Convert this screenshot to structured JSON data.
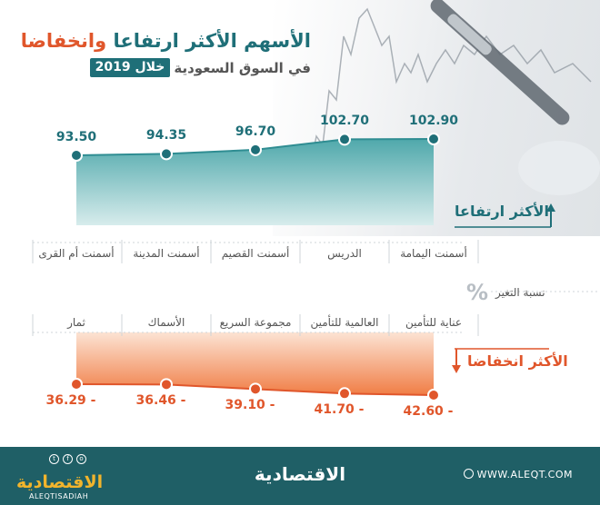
{
  "title": {
    "part1": "الأسهم الأكثر ارتفاعا ",
    "part2": "وانخفاضا",
    "subtitle_text": "في السوق السعودية",
    "subtitle_badge": "خلال 2019"
  },
  "change_axis_label": "نسبة التغير",
  "percent_sign": "%",
  "top_tag": "الأكثر ارتفاعا",
  "bottom_tag": "الأكثر انخفاضا",
  "footer": {
    "brand": "الاقتصادية",
    "url": "WWW.ALEQT.COM",
    "logo_text": "الاقتصادية",
    "handle": "ALEQTISADIAH"
  },
  "colors": {
    "teal": "#1f6f78",
    "orange": "#e0562b",
    "teal_fill": "#3f9fa3",
    "orange_fill": "#f08a55"
  },
  "chart_data": [
    {
      "type": "area",
      "subtitle": "الأكثر ارتفاعا",
      "categories": [
        "أسمنت اليمامة",
        "الدريس",
        "أسمنت القصيم",
        "أسمنت المدينة",
        "أسمنت أم القرى"
      ],
      "values": [
        102.9,
        102.7,
        96.7,
        94.35,
        93.5
      ],
      "value_labels": [
        "102.90",
        "102.70",
        "96.70",
        "94.35",
        "93.50"
      ],
      "ylabel": "نسبة التغير %"
    },
    {
      "type": "area",
      "subtitle": "الأكثر انخفاضا",
      "categories": [
        "عناية للتأمين",
        "العالمية للتأمين",
        "مجموعة السريع",
        "الأسماك",
        "ثمار"
      ],
      "values": [
        -42.6,
        -41.7,
        -39.1,
        -36.46,
        -36.29
      ],
      "value_labels": [
        "42.60 -",
        "41.70 -",
        "39.10 -",
        "36.46 -",
        "36.29 -"
      ],
      "ylabel": "نسبة التغير %"
    }
  ]
}
